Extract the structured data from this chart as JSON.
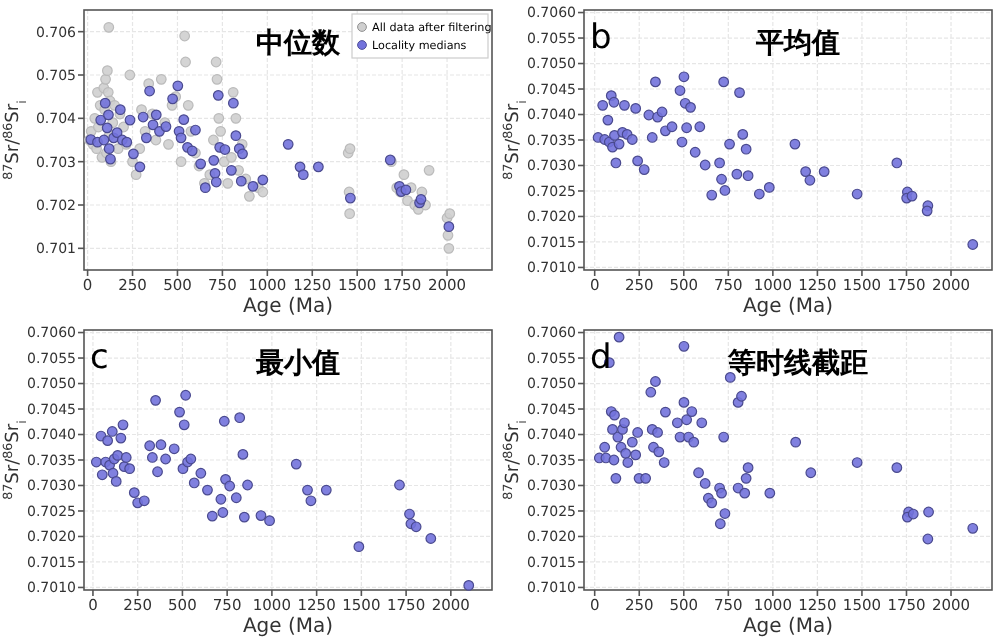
{
  "chart_data": [
    {
      "type": "scatter",
      "title": "中位数",
      "xlabel": "Age (Ma)",
      "ylabel": "$^{87}$Sr/$^{86}$Sr$_{i}$",
      "xlim": [
        -20,
        2250
      ],
      "ylim": [
        0.7005,
        0.7065
      ],
      "xticks": [
        0,
        250,
        500,
        750,
        1000,
        1250,
        1500,
        1750,
        2000
      ],
      "yticks": [
        0.701,
        0.702,
        0.703,
        0.704,
        0.705,
        0.706
      ],
      "grid": true,
      "legend": "top right",
      "marker": "circle",
      "series": [
        {
          "name": "All data after filtering",
          "color": "#cfcfcf",
          "x": [
            10,
            20,
            30,
            40,
            50,
            55,
            60,
            70,
            80,
            90,
            95,
            100,
            105,
            110,
            115,
            118,
            120,
            125,
            130,
            140,
            150,
            170,
            180,
            200,
            215,
            235,
            250,
            270,
            290,
            300,
            320,
            340,
            360,
            380,
            410,
            430,
            450,
            470,
            490,
            520,
            540,
            545,
            560,
            575,
            600,
            620,
            650,
            680,
            700,
            715,
            720,
            730,
            740,
            760,
            780,
            800,
            810,
            825,
            840,
            860,
            880,
            900,
            950,
            975,
            1450,
            1455,
            1458,
            1460,
            1690,
            1720,
            1740,
            1760,
            1780,
            1800,
            1820,
            1840,
            1860,
            1880,
            1900,
            2000,
            2005,
            2010,
            2015
          ],
          "values": [
            0.7035,
            0.7037,
            0.7034,
            0.704,
            0.7033,
            0.7046,
            0.7038,
            0.7043,
            0.7031,
            0.7047,
            0.7042,
            0.7049,
            0.7032,
            0.7051,
            0.7046,
            0.7061,
            0.7036,
            0.7044,
            0.703,
            0.7039,
            0.7043,
            0.7033,
            0.7041,
            0.7038,
            0.7034,
            0.705,
            0.703,
            0.7027,
            0.7033,
            0.7042,
            0.7037,
            0.7048,
            0.7041,
            0.7035,
            0.7049,
            0.7039,
            0.7034,
            0.7043,
            0.7045,
            0.703,
            0.7059,
            0.7053,
            0.7043,
            0.7037,
            0.7032,
            0.7029,
            0.7025,
            0.7027,
            0.7035,
            0.7053,
            0.7049,
            0.704,
            0.7037,
            0.703,
            0.7025,
            0.7031,
            0.7046,
            0.704,
            0.7028,
            0.7034,
            0.7026,
            0.7022,
            0.7024,
            0.7023,
            0.7032,
            0.7023,
            0.7018,
            0.7033,
            0.703,
            0.7024,
            0.7023,
            0.7027,
            0.7021,
            0.7024,
            0.702,
            0.7019,
            0.7023,
            0.702,
            0.7028,
            0.7017,
            0.7013,
            0.701,
            0.7018
          ]
        },
        {
          "name": "Locality medians",
          "color": "#7272dc",
          "x": [
            18,
            55,
            73,
            91,
            98,
            109,
            116,
            120,
            127,
            145,
            164,
            182,
            193,
            218,
            236,
            255,
            291,
            309,
            327,
            345,
            364,
            382,
            400,
            436,
            473,
            502,
            509,
            520,
            535,
            556,
            582,
            600,
            629,
            655,
            702,
            709,
            716,
            727,
            735,
            764,
            800,
            811,
            825,
            844,
            855,
            862,
            920,
            975,
            1116,
            1182,
            1200,
            1284,
            1462,
            1684,
            1735,
            1745,
            1771,
            1847,
            1855,
            2010
          ],
          "values": [
            0.70351,
            0.70345,
            0.70396,
            0.7035,
            0.70435,
            0.70378,
            0.70408,
            0.7033,
            0.70306,
            0.70355,
            0.70367,
            0.7042,
            0.7035,
            0.70345,
            0.70396,
            0.70318,
            0.70288,
            0.70403,
            0.70355,
            0.70463,
            0.70385,
            0.70408,
            0.7037,
            0.70381,
            0.70445,
            0.70475,
            0.7037,
            0.70355,
            0.70397,
            0.70333,
            0.70325,
            0.70373,
            0.70295,
            0.7024,
            0.70303,
            0.70273,
            0.70253,
            0.70453,
            0.70333,
            0.70328,
            0.7028,
            0.70435,
            0.7036,
            0.7033,
            0.70255,
            0.70318,
            0.70243,
            0.70258,
            0.7034,
            0.70288,
            0.7027,
            0.70288,
            0.70216,
            0.70304,
            0.70243,
            0.70231,
            0.70235,
            0.70205,
            0.70213,
            0.7015
          ]
        }
      ]
    },
    {
      "type": "scatter",
      "title": "平均值",
      "annotations": [
        "b"
      ],
      "xlabel": "Age (Ma)",
      "ylabel": "$^{87}$Sr/$^{86}$Sr$_{i}$",
      "xlim": [
        -60,
        2230
      ],
      "ylim": [
        0.70095,
        0.70605
      ],
      "xticks": [
        0,
        250,
        500,
        750,
        1000,
        1250,
        1500,
        1750,
        2000
      ],
      "yticks": [
        {
          "value": 0.701,
          "label": "0.7010"
        },
        {
          "value": 0.7015,
          "label": "0.7015"
        },
        {
          "value": 0.702,
          "label": "0.7020"
        },
        {
          "value": 0.7025,
          "label": "0.7025"
        },
        {
          "value": 0.703,
          "label": "0.7030"
        },
        {
          "value": 0.7035,
          "label": "0.7035"
        },
        {
          "value": 0.704,
          "label": "0.7040"
        },
        {
          "value": 0.7045,
          "label": "0.7045"
        },
        {
          "value": 0.705,
          "label": "0.7050"
        },
        {
          "value": 0.7055,
          "label": "0.7055"
        },
        {
          "value": 0.706,
          "label": "0.7060"
        }
      ],
      "grid": true,
      "marker": "circle",
      "series": [
        {
          "color": "#7272dc",
          "x": [
            19,
            45,
            56,
            74,
            82,
            93,
            100,
            108,
            111,
            119,
            137,
            156,
            167,
            182,
            211,
            230,
            241,
            278,
            304,
            323,
            341,
            353,
            378,
            397,
            434,
            479,
            490,
            501,
            508,
            516,
            538,
            564,
            590,
            620,
            657,
            701,
            712,
            724,
            731,
            757,
            798,
            813,
            831,
            850,
            861,
            924,
            980,
            1124,
            1184,
            1208,
            1288,
            1473,
            1696,
            1755,
            1751,
            1781,
            1870,
            1866,
            2122
          ],
          "values": [
            0.70355,
            0.70418,
            0.70351,
            0.70389,
            0.70346,
            0.70437,
            0.70336,
            0.70424,
            0.70359,
            0.70305,
            0.70342,
            0.70365,
            0.70418,
            0.70361,
            0.70351,
            0.70412,
            0.70309,
            0.70292,
            0.70399,
            0.70355,
            0.70464,
            0.70395,
            0.70405,
            0.70368,
            0.70376,
            0.70447,
            0.70346,
            0.70474,
            0.70422,
            0.70374,
            0.70414,
            0.70326,
            0.70376,
            0.70301,
            0.70242,
            0.70305,
            0.70273,
            0.70464,
            0.70251,
            0.70342,
            0.70283,
            0.70443,
            0.70361,
            0.70332,
            0.7028,
            0.70244,
            0.70257,
            0.70342,
            0.70288,
            0.70271,
            0.70288,
            0.70244,
            0.70305,
            0.70248,
            0.70236,
            0.7024,
            0.70221,
            0.70211,
            0.70145
          ]
        }
      ]
    },
    {
      "type": "scatter",
      "title": "最小值",
      "annotations": [
        "c"
      ],
      "xlabel": "Age (Ma)",
      "ylabel": "$^{87}$Sr/$^{86}$Sr$_{i}$",
      "xlim": [
        -50,
        2230
      ],
      "ylim": [
        0.70095,
        0.70605
      ],
      "xticks": [
        0,
        250,
        500,
        750,
        1000,
        1250,
        1500,
        1750,
        2000
      ],
      "yticks": [
        {
          "value": 0.701,
          "label": "0.7010"
        },
        {
          "value": 0.7015,
          "label": "0.7015"
        },
        {
          "value": 0.702,
          "label": "0.7020"
        },
        {
          "value": 0.7025,
          "label": "0.7025"
        },
        {
          "value": 0.703,
          "label": "0.7030"
        },
        {
          "value": 0.7035,
          "label": "0.7035"
        },
        {
          "value": 0.704,
          "label": "0.7040"
        },
        {
          "value": 0.7045,
          "label": "0.7045"
        },
        {
          "value": 0.705,
          "label": "0.7050"
        },
        {
          "value": 0.7055,
          "label": "0.7055"
        },
        {
          "value": 0.706,
          "label": "0.7060"
        }
      ],
      "grid": true,
      "marker": "circle",
      "series": [
        {
          "color": "#7272dc",
          "x": [
            19,
            45,
            52,
            71,
            82,
            93,
            108,
            112,
            119,
            130,
            138,
            156,
            168,
            175,
            186,
            205,
            231,
            250,
            287,
            317,
            332,
            350,
            361,
            380,
            406,
            454,
            484,
            503,
            510,
            518,
            529,
            547,
            566,
            603,
            640,
            667,
            715,
            726,
            734,
            741,
            764,
            801,
            820,
            838,
            846,
            864,
            939,
            987,
            1136,
            1199,
            1218,
            1304,
            1486,
            1713,
            1769,
            1777,
            1806,
            1888,
            2100
          ],
          "values": [
            0.70346,
            0.70397,
            0.70321,
            0.70346,
            0.70388,
            0.7034,
            0.70406,
            0.70324,
            0.70352,
            0.70308,
            0.70359,
            0.70393,
            0.70419,
            0.70337,
            0.70355,
            0.70333,
            0.70286,
            0.70266,
            0.7027,
            0.70378,
            0.70355,
            0.70467,
            0.70327,
            0.7038,
            0.70352,
            0.70372,
            0.70444,
            0.70333,
            0.70419,
            0.70477,
            0.70346,
            0.70352,
            0.70305,
            0.70324,
            0.70291,
            0.7024,
            0.70273,
            0.70247,
            0.70426,
            0.70312,
            0.70299,
            0.70276,
            0.70433,
            0.70361,
            0.70238,
            0.70301,
            0.70241,
            0.70231,
            0.70342,
            0.70291,
            0.7027,
            0.70291,
            0.7018,
            0.70301,
            0.70244,
            0.70225,
            0.70219,
            0.70196,
            0.70104
          ]
        }
      ]
    },
    {
      "type": "scatter",
      "title": "等时线截距",
      "annotations": [
        "d"
      ],
      "xlabel": "Age (Ma)",
      "ylabel": "$^{87}$Sr/$^{86}$Sr$_{i}$",
      "xlim": [
        -60,
        2230
      ],
      "ylim": [
        0.70095,
        0.70605
      ],
      "xticks": [
        0,
        250,
        500,
        750,
        1000,
        1250,
        1500,
        1750,
        2000
      ],
      "yticks": [
        {
          "value": 0.701,
          "label": "0.7010"
        },
        {
          "value": 0.7015,
          "label": "0.7015"
        },
        {
          "value": 0.702,
          "label": "0.7020"
        },
        {
          "value": 0.7025,
          "label": "0.7025"
        },
        {
          "value": 0.703,
          "label": "0.7030"
        },
        {
          "value": 0.7035,
          "label": "0.7035"
        },
        {
          "value": 0.704,
          "label": "0.7040"
        },
        {
          "value": 0.7045,
          "label": "0.7045"
        },
        {
          "value": 0.705,
          "label": "0.7050"
        },
        {
          "value": 0.7055,
          "label": "0.7055"
        },
        {
          "value": 0.706,
          "label": "0.7060"
        }
      ],
      "grid": true,
      "marker": "circle",
      "series": [
        {
          "color": "#7272dc",
          "x": [
            26,
            56,
            63,
            82,
            93,
            100,
            108,
            111,
            119,
            130,
            137,
            148,
            156,
            167,
            174,
            186,
            211,
            230,
            241,
            249,
            286,
            315,
            323,
            330,
            341,
            353,
            360,
            390,
            397,
            464,
            479,
            501,
            501,
            516,
            527,
            545,
            556,
            583,
            601,
            620,
            638,
            657,
            701,
            705,
            712,
            724,
            731,
            761,
            805,
            824,
            805,
            842,
            850,
            861,
            983,
            1128,
            1213,
            1473,
            1696,
            1762,
            1755,
            1788,
            1874,
            1870,
            2122
          ],
          "values": [
            0.70354,
            0.70375,
            0.70354,
            0.70541,
            0.70445,
            0.7041,
            0.7035,
            0.70438,
            0.70314,
            0.70395,
            0.70591,
            0.70375,
            0.7041,
            0.70423,
            0.70363,
            0.70345,
            0.70385,
            0.7036,
            0.70404,
            0.70314,
            0.70314,
            0.70483,
            0.7041,
            0.70375,
            0.70504,
            0.70404,
            0.70366,
            0.70345,
            0.70444,
            0.70423,
            0.70395,
            0.70573,
            0.70463,
            0.70429,
            0.70395,
            0.70445,
            0.70385,
            0.70325,
            0.70423,
            0.70304,
            0.70275,
            0.70266,
            0.70295,
            0.70225,
            0.70285,
            0.70395,
            0.70245,
            0.70512,
            0.70463,
            0.70475,
            0.70295,
            0.70285,
            0.70314,
            0.70335,
            0.70285,
            0.70385,
            0.70325,
            0.70345,
            0.70335,
            0.70248,
            0.70238,
            0.70244,
            0.70248,
            0.70195,
            0.70216
          ]
        }
      ]
    }
  ]
}
